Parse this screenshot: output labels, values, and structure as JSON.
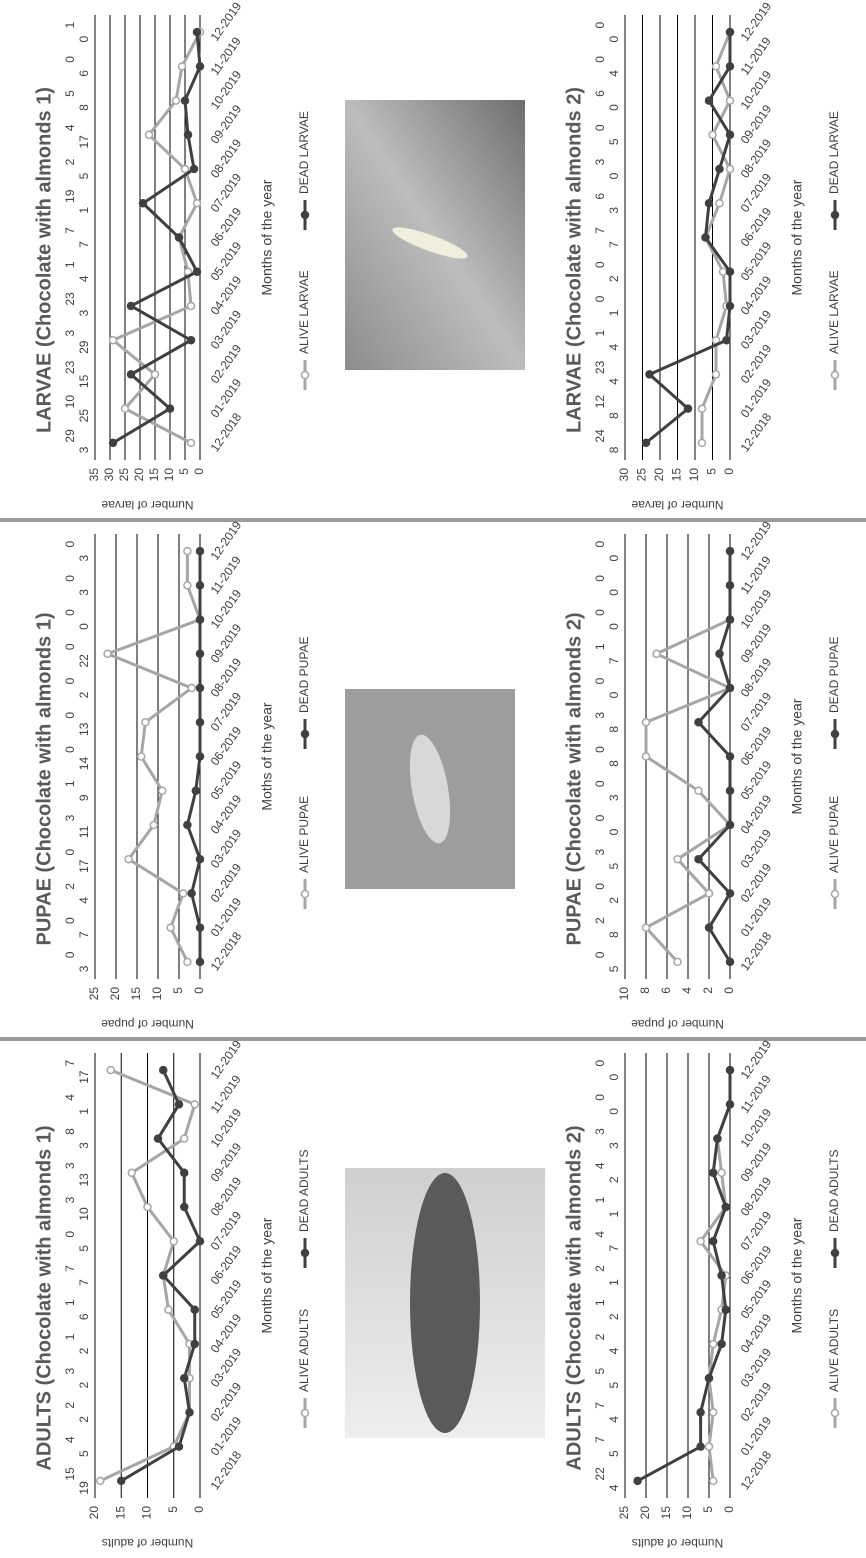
{
  "chart_data": [
    {
      "type": "line",
      "title": "LARVAE (Chocolate with almonds 1)",
      "x_label": "Months of the year",
      "y_label": "Number of larvae",
      "categories": [
        "12-2018",
        "01-2019",
        "02-2019",
        "03-2019",
        "04-2019",
        "05-2019",
        "06-2019",
        "07-2019",
        "08-2019",
        "09-2019",
        "10-2019",
        "11-2019",
        "12-2019"
      ],
      "series": [
        {
          "name": "ALIVE LARVAE",
          "color": "#a6a6a6",
          "values": [
            3,
            25,
            15,
            29,
            3,
            4,
            7,
            1,
            5,
            17,
            8,
            6,
            0
          ]
        },
        {
          "name": "DEAD LARVAE",
          "color": "#404040",
          "values": [
            29,
            10,
            23,
            3,
            23,
            1,
            7,
            19,
            2,
            4,
            5,
            0,
            1
          ]
        }
      ],
      "ylim": [
        0,
        35
      ],
      "yticks": [
        0,
        5,
        10,
        15,
        20,
        25,
        30,
        35
      ],
      "grid": true
    },
    {
      "type": "line",
      "title": "LARVAE (Chocolate with almonds 2)",
      "x_label": "Months of the year",
      "y_label": "Number of larvae",
      "categories": [
        "12-2018",
        "01-2019",
        "02-2019",
        "03-2019",
        "04-2019",
        "05-2019",
        "06-2019",
        "07-2019",
        "08-2019",
        "09-2019",
        "10-2019",
        "11-2019",
        "12-2019"
      ],
      "series": [
        {
          "name": "ALIVE LARVAE",
          "color": "#a6a6a6",
          "values": [
            8,
            8,
            4,
            4,
            1,
            2,
            7,
            3,
            0,
            5,
            0,
            4,
            0
          ]
        },
        {
          "name": "DEAD LARVAE",
          "color": "#404040",
          "values": [
            24,
            12,
            23,
            1,
            0,
            0,
            7,
            6,
            3,
            0,
            6,
            0,
            0
          ]
        }
      ],
      "ylim": [
        0,
        30
      ],
      "yticks": [
        0,
        5,
        10,
        15,
        20,
        25,
        30
      ],
      "grid": true
    },
    {
      "type": "line",
      "title": "PUPAE (Chocolate with almonds 1)",
      "x_label": "Moths of the year",
      "y_label": "Number of pupae",
      "categories": [
        "12-2018",
        "01-2019",
        "02-2019",
        "03-2019",
        "04-2019",
        "05-2019",
        "06-2019",
        "07-2019",
        "08-2019",
        "09-2019",
        "10-2019",
        "11-2019",
        "12-2019"
      ],
      "series": [
        {
          "name": "ALIVE PUPAE",
          "color": "#a6a6a6",
          "values": [
            3,
            7,
            4,
            17,
            11,
            9,
            14,
            13,
            2,
            22,
            0,
            3,
            3
          ]
        },
        {
          "name": "DEAD PUPAE",
          "color": "#404040",
          "values": [
            0,
            0,
            2,
            0,
            3,
            1,
            0,
            0,
            0,
            0,
            0,
            0,
            0
          ]
        }
      ],
      "ylim": [
        0,
        25
      ],
      "yticks": [
        0,
        5,
        10,
        15,
        20,
        25
      ],
      "grid": true
    },
    {
      "type": "line",
      "title": "PUPAE (Chocolate with almonds 2)",
      "x_label": "Months of the year",
      "y_label": "Number of pupae",
      "categories": [
        "12-2018",
        "01-2019",
        "02-2019",
        "03-2019",
        "04-2019",
        "05-2019",
        "06-2019",
        "07-2019",
        "08-2019",
        "09-2019",
        "10-2019",
        "11-2019",
        "12-2019"
      ],
      "series": [
        {
          "name": "ALIVE PUPAE",
          "color": "#a6a6a6",
          "values": [
            5,
            8,
            2,
            5,
            0,
            3,
            8,
            8,
            0,
            7,
            0,
            0,
            0
          ]
        },
        {
          "name": "DEAD PUPAE",
          "color": "#404040",
          "values": [
            0,
            2,
            0,
            3,
            0,
            0,
            0,
            3,
            0,
            1,
            0,
            0,
            0
          ]
        }
      ],
      "ylim": [
        0,
        10
      ],
      "yticks": [
        0,
        2,
        4,
        6,
        8,
        10
      ],
      "grid": true
    },
    {
      "type": "line",
      "title": "ADULTS (Chocolate with almonds 1)",
      "x_label": "Months of the year",
      "y_label": "Number of adults",
      "categories": [
        "12-2018",
        "01-2019",
        "02-2019",
        "03-2019",
        "04-2019",
        "05-2019",
        "06-2019",
        "07-2019",
        "08-2019",
        "09-2019",
        "10-2019",
        "11-2019",
        "12-2019"
      ],
      "series": [
        {
          "name": "ALIVE ADULTS",
          "color": "#a6a6a6",
          "values": [
            19,
            5,
            2,
            2,
            2,
            6,
            7,
            5,
            10,
            13,
            3,
            1,
            17
          ]
        },
        {
          "name": "DEAD ADULTS",
          "color": "#404040",
          "values": [
            15,
            4,
            2,
            3,
            1,
            1,
            7,
            0,
            3,
            3,
            8,
            4,
            7
          ]
        }
      ],
      "ylim": [
        0,
        20
      ],
      "yticks": [
        0,
        5,
        10,
        15,
        20
      ],
      "grid": true
    },
    {
      "type": "line",
      "title": "ADULTS (Chocolate with almonds 2)",
      "x_label": "Months of the year",
      "y_label": "Number of adults",
      "categories": [
        "12-2018",
        "01-2019",
        "02-2019",
        "03-2019",
        "04-2019",
        "05-2019",
        "06-2019",
        "07-2019",
        "08-2019",
        "09-2019",
        "10-2019",
        "11-2019",
        "12-2019"
      ],
      "series": [
        {
          "name": "ALIVE ADULTS",
          "color": "#a6a6a6",
          "values": [
            4,
            5,
            4,
            5,
            4,
            2,
            1,
            7,
            1,
            2,
            3,
            0,
            0
          ]
        },
        {
          "name": "DEAD ADULTS",
          "color": "#404040",
          "values": [
            22,
            7,
            7,
            5,
            2,
            1,
            2,
            4,
            1,
            4,
            3,
            0,
            0
          ]
        }
      ],
      "ylim": [
        0,
        25
      ],
      "yticks": [
        0,
        5,
        10,
        15,
        20,
        25
      ],
      "grid": true
    }
  ]
}
